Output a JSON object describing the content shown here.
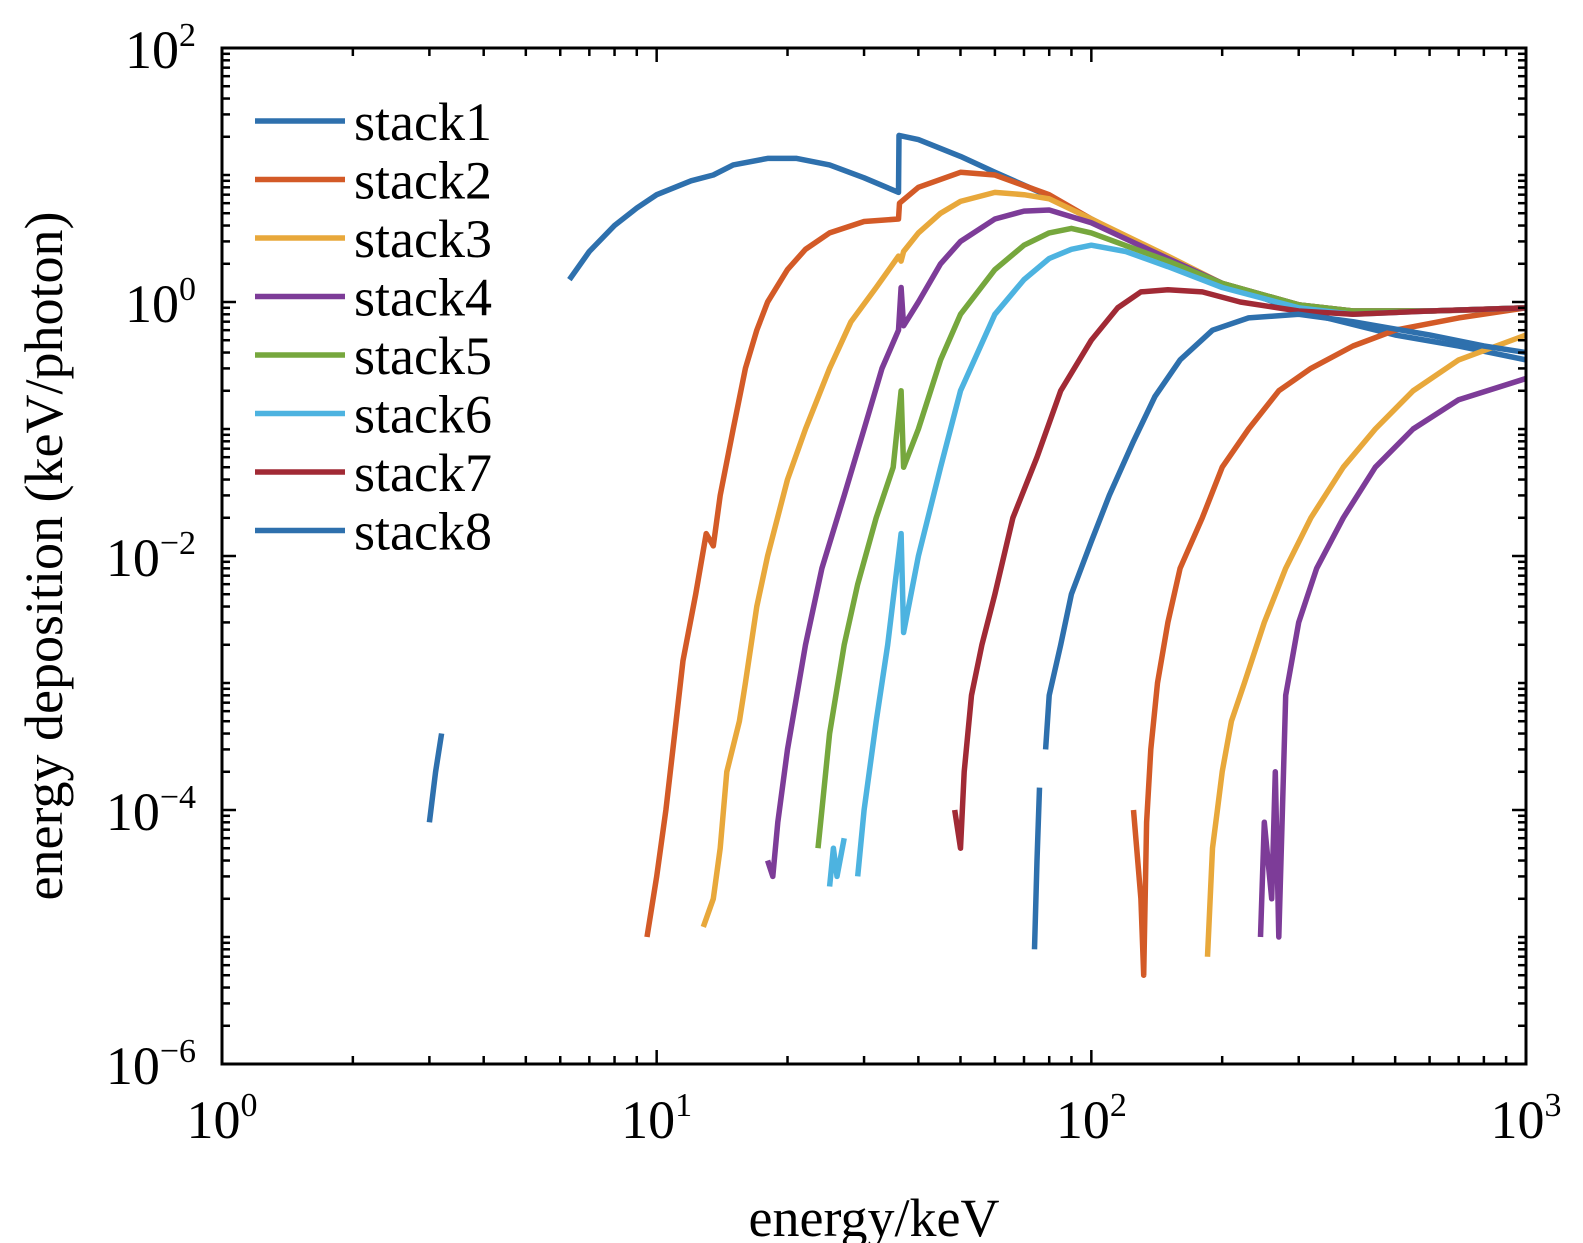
{
  "chart_data": {
    "type": "line",
    "xlabel": "energy/keV",
    "ylabel": "energy deposition (keV/photon)",
    "xscale": "log",
    "yscale": "log",
    "xlim": [
      1,
      1000
    ],
    "ylim": [
      1e-06,
      100
    ],
    "grid": false,
    "legend_position": "top-left",
    "x_ticks": [
      {
        "base": "10",
        "exp": "0",
        "value": 1
      },
      {
        "base": "10",
        "exp": "1",
        "value": 10
      },
      {
        "base": "10",
        "exp": "2",
        "value": 100
      },
      {
        "base": "10",
        "exp": "3",
        "value": 1000
      }
    ],
    "y_ticks": [
      {
        "base": "10",
        "exp": "−6",
        "value": 1e-06
      },
      {
        "base": "10",
        "exp": "−4",
        "value": 0.0001
      },
      {
        "base": "10",
        "exp": "−2",
        "value": 0.01
      },
      {
        "base": "10",
        "exp": "0",
        "value": 1
      },
      {
        "base": "10",
        "exp": "2",
        "value": 100
      }
    ],
    "series": [
      {
        "name": "stack1",
        "color": "#2e70ad",
        "segments": [
          [
            [
              3.0,
              8e-05
            ],
            [
              3.1,
              0.0002
            ],
            [
              3.2,
              0.0004
            ]
          ],
          [
            [
              6.3,
              1.5
            ],
            [
              7,
              2.5
            ],
            [
              8,
              4
            ],
            [
              9,
              5.5
            ],
            [
              10,
              7
            ],
            [
              12,
              9
            ],
            [
              13.5,
              10
            ],
            [
              15,
              12
            ],
            [
              18,
              13.5
            ],
            [
              21,
              13.5
            ],
            [
              25,
              12
            ],
            [
              30,
              9.5
            ],
            [
              36,
              7.3
            ],
            [
              36.1,
              20.5
            ],
            [
              40,
              19
            ],
            [
              50,
              14
            ],
            [
              60,
              10.5
            ],
            [
              80,
              6.8
            ],
            [
              100,
              4.5
            ],
            [
              150,
              2.2
            ],
            [
              200,
              1.4
            ],
            [
              300,
              0.85
            ],
            [
              500,
              0.55
            ],
            [
              700,
              0.45
            ],
            [
              1000,
              0.35
            ]
          ]
        ]
      },
      {
        "name": "stack2",
        "color": "#d35a27",
        "segments": [
          [
            [
              9.5,
              1e-05
            ],
            [
              10,
              3e-05
            ],
            [
              10.5,
              0.0001
            ],
            [
              11,
              0.0004
            ],
            [
              11.5,
              0.0015
            ],
            [
              12.3,
              0.005
            ],
            [
              13,
              0.015
            ],
            [
              13.5,
              0.012
            ],
            [
              14,
              0.03
            ],
            [
              15,
              0.1
            ],
            [
              16,
              0.3
            ],
            [
              17,
              0.6
            ],
            [
              18,
              1
            ],
            [
              20,
              1.8
            ],
            [
              22,
              2.6
            ],
            [
              25,
              3.5
            ],
            [
              30,
              4.3
            ],
            [
              36,
              4.5
            ],
            [
              36.2,
              6
            ],
            [
              40,
              8
            ],
            [
              50,
              10.5
            ],
            [
              60,
              10
            ],
            [
              80,
              7
            ],
            [
              100,
              4.5
            ],
            [
              150,
              2.2
            ],
            [
              200,
              1.4
            ],
            [
              300,
              0.95
            ],
            [
              400,
              0.85
            ],
            [
              600,
              0.85
            ],
            [
              800,
              0.87
            ],
            [
              1000,
              0.9
            ]
          ],
          [
            [
              125,
              0.0001
            ],
            [
              130,
              2e-05
            ],
            [
              132,
              5e-06
            ],
            [
              134,
              8e-05
            ],
            [
              137,
              0.0003
            ],
            [
              142,
              0.001
            ],
            [
              150,
              0.003
            ],
            [
              160,
              0.008
            ],
            [
              180,
              0.02
            ],
            [
              200,
              0.05
            ],
            [
              230,
              0.1
            ],
            [
              270,
              0.2
            ],
            [
              320,
              0.3
            ],
            [
              400,
              0.45
            ],
            [
              500,
              0.6
            ],
            [
              700,
              0.75
            ],
            [
              1000,
              0.9
            ]
          ]
        ]
      },
      {
        "name": "stack3",
        "color": "#e8a83b",
        "segments": [
          [
            [
              12.8,
              1.2e-05
            ],
            [
              13.5,
              2e-05
            ],
            [
              14,
              5e-05
            ],
            [
              14.5,
              0.0002
            ],
            [
              15.5,
              0.0005
            ],
            [
              16,
              0.001
            ],
            [
              17,
              0.004
            ],
            [
              18,
              0.01
            ],
            [
              20,
              0.04
            ],
            [
              22,
              0.1
            ],
            [
              25,
              0.3
            ],
            [
              28,
              0.7
            ],
            [
              32,
              1.3
            ],
            [
              36,
              2.3
            ],
            [
              36.5,
              2.1
            ],
            [
              37,
              2.5
            ],
            [
              40,
              3.5
            ],
            [
              45,
              5
            ],
            [
              50,
              6.2
            ],
            [
              60,
              7.3
            ],
            [
              70,
              7
            ],
            [
              80,
              6.5
            ],
            [
              100,
              4.5
            ],
            [
              150,
              2.3
            ],
            [
              200,
              1.4
            ],
            [
              300,
              0.95
            ],
            [
              400,
              0.85
            ],
            [
              600,
              0.85
            ],
            [
              1000,
              0.9
            ]
          ],
          [
            [
              185,
              7e-06
            ],
            [
              190,
              5e-05
            ],
            [
              195,
              0.0001
            ],
            [
              200,
              0.0002
            ],
            [
              210,
              0.0005
            ],
            [
              225,
              0.001
            ],
            [
              250,
              0.003
            ],
            [
              280,
              0.008
            ],
            [
              320,
              0.02
            ],
            [
              380,
              0.05
            ],
            [
              450,
              0.1
            ],
            [
              550,
              0.2
            ],
            [
              700,
              0.35
            ],
            [
              1000,
              0.55
            ]
          ]
        ]
      },
      {
        "name": "stack4",
        "color": "#7d3c98",
        "segments": [
          [
            [
              18,
              4e-05
            ],
            [
              18.5,
              3e-05
            ],
            [
              19,
              8e-05
            ],
            [
              20,
              0.0003
            ],
            [
              22,
              0.002
            ],
            [
              24,
              0.008
            ],
            [
              27,
              0.03
            ],
            [
              30,
              0.1
            ],
            [
              33,
              0.3
            ],
            [
              36,
              0.6
            ],
            [
              36.5,
              1.3
            ],
            [
              37,
              0.65
            ],
            [
              40,
              1
            ],
            [
              45,
              2
            ],
            [
              50,
              3
            ],
            [
              60,
              4.5
            ],
            [
              70,
              5.2
            ],
            [
              80,
              5.3
            ],
            [
              100,
              4.2
            ],
            [
              150,
              2.2
            ],
            [
              200,
              1.4
            ],
            [
              300,
              0.95
            ],
            [
              400,
              0.85
            ],
            [
              600,
              0.85
            ],
            [
              1000,
              0.9
            ]
          ],
          [
            [
              245,
              1e-05
            ],
            [
              250,
              8e-05
            ],
            [
              260,
              2e-05
            ],
            [
              265,
              0.0002
            ],
            [
              270,
              1e-05
            ],
            [
              280,
              0.0008
            ],
            [
              300,
              0.003
            ],
            [
              330,
              0.008
            ],
            [
              380,
              0.02
            ],
            [
              450,
              0.05
            ],
            [
              550,
              0.1
            ],
            [
              700,
              0.17
            ],
            [
              1000,
              0.25
            ]
          ]
        ]
      },
      {
        "name": "stack5",
        "color": "#76a73d",
        "segments": [
          [
            [
              23.5,
              5e-05
            ],
            [
              24,
              0.0001
            ],
            [
              25,
              0.0004
            ],
            [
              27,
              0.002
            ],
            [
              29,
              0.006
            ],
            [
              32,
              0.02
            ],
            [
              35,
              0.05
            ],
            [
              36.5,
              0.2
            ],
            [
              37,
              0.05
            ],
            [
              40,
              0.1
            ],
            [
              45,
              0.35
            ],
            [
              50,
              0.8
            ],
            [
              60,
              1.8
            ],
            [
              70,
              2.8
            ],
            [
              80,
              3.5
            ],
            [
              90,
              3.8
            ],
            [
              100,
              3.5
            ],
            [
              150,
              2.1
            ],
            [
              200,
              1.4
            ],
            [
              300,
              0.95
            ],
            [
              400,
              0.85
            ],
            [
              600,
              0.85
            ],
            [
              1000,
              0.9
            ]
          ]
        ]
      },
      {
        "name": "stack6",
        "color": "#4db3e0",
        "segments": [
          [
            [
              25,
              2.5e-05
            ],
            [
              25.5,
              5e-05
            ],
            [
              26,
              3e-05
            ],
            [
              27,
              6e-05
            ]
          ],
          [
            [
              29,
              3e-05
            ],
            [
              30,
              0.0001
            ],
            [
              32,
              0.0005
            ],
            [
              34,
              0.002
            ],
            [
              36.5,
              0.015
            ],
            [
              37,
              0.0025
            ],
            [
              40,
              0.01
            ],
            [
              45,
              0.05
            ],
            [
              50,
              0.2
            ],
            [
              60,
              0.8
            ],
            [
              70,
              1.5
            ],
            [
              80,
              2.2
            ],
            [
              90,
              2.6
            ],
            [
              100,
              2.8
            ],
            [
              120,
              2.5
            ],
            [
              150,
              1.9
            ],
            [
              200,
              1.3
            ],
            [
              300,
              0.9
            ],
            [
              400,
              0.8
            ],
            [
              600,
              0.85
            ],
            [
              1000,
              0.9
            ]
          ]
        ]
      },
      {
        "name": "stack7",
        "color": "#a12a35",
        "segments": [
          [
            [
              48.5,
              0.0001
            ],
            [
              50,
              5e-05
            ],
            [
              51,
              0.0002
            ],
            [
              53,
              0.0008
            ],
            [
              56,
              0.002
            ],
            [
              60,
              0.005
            ],
            [
              66,
              0.02
            ],
            [
              75,
              0.06
            ],
            [
              85,
              0.2
            ],
            [
              100,
              0.5
            ],
            [
              115,
              0.9
            ],
            [
              130,
              1.2
            ],
            [
              150,
              1.25
            ],
            [
              180,
              1.2
            ],
            [
              220,
              1.0
            ],
            [
              300,
              0.85
            ],
            [
              400,
              0.8
            ],
            [
              600,
              0.85
            ],
            [
              1000,
              0.9
            ]
          ]
        ]
      },
      {
        "name": "stack8",
        "color": "#2e70ad",
        "segments": [
          [
            [
              74,
              8e-06
            ],
            [
              75,
              4e-05
            ],
            [
              76,
              0.00015
            ]
          ],
          [
            [
              78.5,
              0.0003
            ],
            [
              80,
              0.0008
            ],
            [
              85,
              0.002
            ],
            [
              90,
              0.005
            ],
            [
              100,
              0.013
            ],
            [
              110,
              0.03
            ],
            [
              125,
              0.08
            ],
            [
              140,
              0.18
            ],
            [
              160,
              0.35
            ],
            [
              190,
              0.6
            ],
            [
              230,
              0.75
            ],
            [
              300,
              0.8
            ],
            [
              400,
              0.7
            ],
            [
              600,
              0.55
            ],
            [
              800,
              0.45
            ],
            [
              1000,
              0.4
            ]
          ]
        ]
      }
    ]
  }
}
